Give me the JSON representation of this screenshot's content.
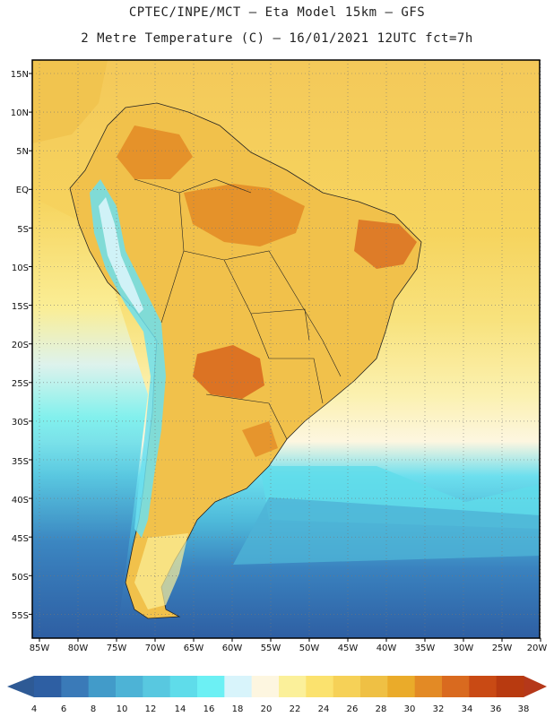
{
  "header": {
    "line1": "CPTEC/INPE/MCT –  Eta Model 15km – GFS",
    "line2": "2 Metre Temperature (C) – 16/01/2021 12UTC fct=7h"
  },
  "map": {
    "lat_labels": [
      "15N",
      "10N",
      "5N",
      "EQ",
      "5S",
      "10S",
      "15S",
      "20S",
      "25S",
      "30S",
      "35S",
      "40S",
      "45S",
      "50S",
      "55S"
    ],
    "lon_labels": [
      "85W",
      "80W",
      "75W",
      "70W",
      "65W",
      "60W",
      "55W",
      "50W",
      "45W",
      "40W",
      "35W",
      "30W",
      "25W",
      "20W"
    ]
  },
  "colorbar": {
    "values": [
      "4",
      "6",
      "8",
      "10",
      "12",
      "14",
      "16",
      "18",
      "20",
      "22",
      "24",
      "26",
      "28",
      "30",
      "32",
      "34",
      "36",
      "38"
    ],
    "colors": [
      "#2e5fa3",
      "#3a7ab8",
      "#429bc9",
      "#4db3d6",
      "#58c8e0",
      "#5fdcea",
      "#6cf0f4",
      "#d8f4fb",
      "#fdf6e0",
      "#fbf09a",
      "#fbe26e",
      "#f6d157",
      "#efc044",
      "#eaab2a",
      "#e38a25",
      "#d96a1f",
      "#c94a14",
      "#b83a10"
    ],
    "left_arrow_color": "#2e5a95",
    "right_arrow_color": "#b5381a"
  }
}
